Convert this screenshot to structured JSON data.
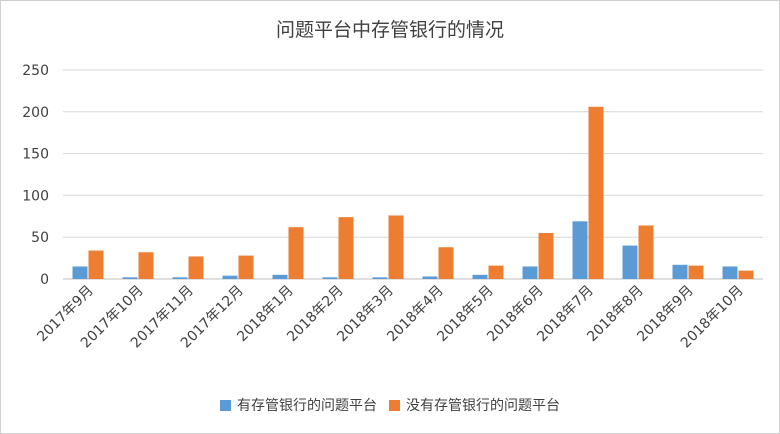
{
  "chart_data": {
    "type": "bar",
    "title": "问题平台中存管银行的情况",
    "xlabel": "",
    "ylabel": "",
    "categories": [
      "2017年9月",
      "2017年10月",
      "2017年11月",
      "2017年12月",
      "2018年1月",
      "2018年2月",
      "2018年3月",
      "2018年4月",
      "2018年5月",
      "2018年6月",
      "2018年7月",
      "2018年8月",
      "2018年9月",
      "2018年10月"
    ],
    "series": [
      {
        "name": "有存管银行的问题平台",
        "color": "#5B9BD5",
        "values": [
          15,
          2,
          2,
          4,
          5,
          2,
          2,
          3,
          5,
          15,
          69,
          40,
          17,
          15
        ]
      },
      {
        "name": "没有存管银行的问题平台",
        "color": "#ED7D31",
        "values": [
          34,
          32,
          27,
          28,
          62,
          74,
          76,
          38,
          16,
          55,
          206,
          64,
          16,
          10
        ]
      }
    ],
    "ylim": [
      0,
      250
    ],
    "yticks": [
      0,
      50,
      100,
      150,
      200,
      250
    ],
    "grid": true,
    "legend": "bottom"
  }
}
